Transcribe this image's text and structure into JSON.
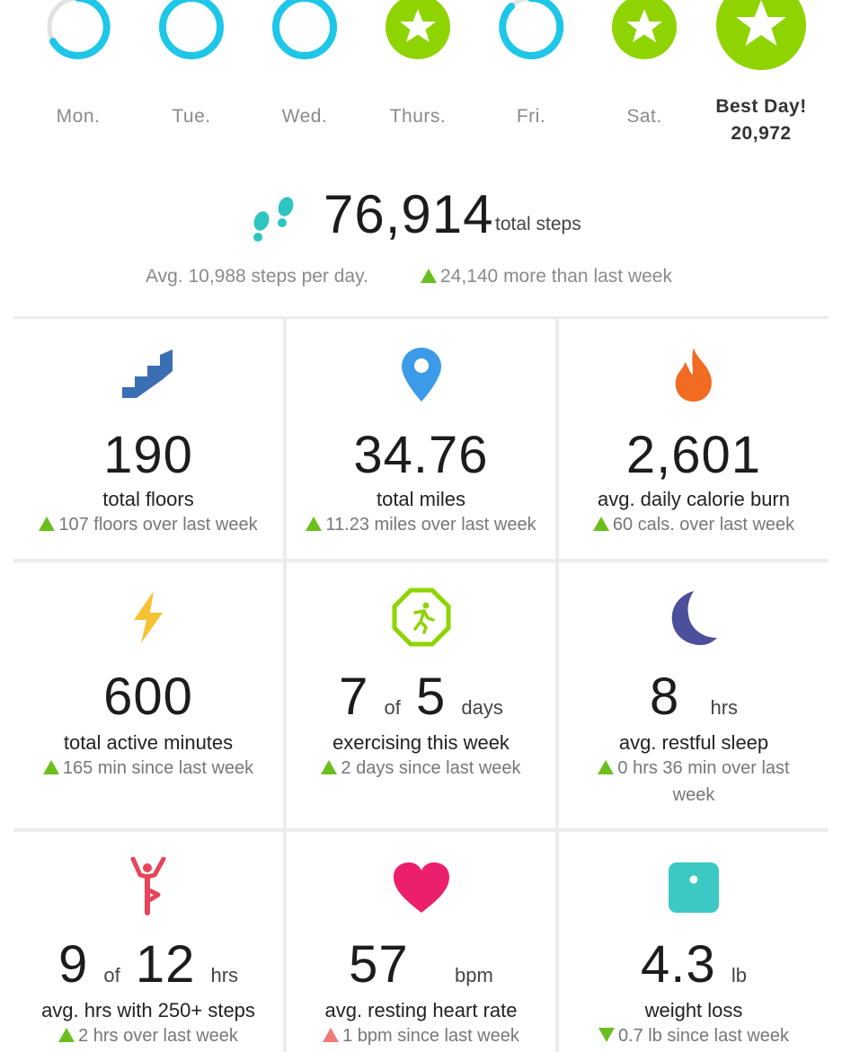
{
  "week": {
    "days": [
      {
        "label": "Mon.",
        "state": "partial",
        "progress": 0.62
      },
      {
        "label": "Tue.",
        "state": "ring",
        "progress": 1.0
      },
      {
        "label": "Wed.",
        "state": "ring",
        "progress": 1.0
      },
      {
        "label": "Thurs.",
        "state": "star",
        "progress": 1.0
      },
      {
        "label": "Fri.",
        "state": "partial",
        "progress": 0.88
      },
      {
        "label": "Sat.",
        "state": "star",
        "progress": 1.0
      }
    ],
    "best_day": {
      "title": "Best Day!",
      "steps": "20,972"
    }
  },
  "summary": {
    "total_steps": "76,914",
    "total_steps_label": "total steps",
    "avg_text": "Avg. 10,988 steps per day.",
    "more_text": "24,140 more than last week"
  },
  "colors": {
    "ring": "#1ec6e8",
    "ring_track": "#e2e2e2",
    "star_green": "#8fd400",
    "up_green": "#6abf1f",
    "up_red": "#f07b7b"
  },
  "tiles": {
    "floors": {
      "icon": "stairs-icon",
      "value": "190",
      "label": "total floors",
      "delta": "107 floors over last week"
    },
    "miles": {
      "icon": "location-pin-icon",
      "value": "34.76",
      "label": "total miles",
      "delta": "11.23 miles over last week"
    },
    "calories": {
      "icon": "flame-icon",
      "value": "2,601",
      "label": "avg. daily calorie burn",
      "delta": "60 cals. over last week"
    },
    "active": {
      "icon": "lightning-icon",
      "value": "600",
      "label": "total active minutes",
      "delta": "165 min since last week"
    },
    "exercise": {
      "icon": "runner-octagon-icon",
      "value": "7",
      "of": "of",
      "value2": "5",
      "unit": "days",
      "label": "exercising this week",
      "delta": "2 days since last week"
    },
    "sleep": {
      "icon": "moon-icon",
      "value": "8",
      "unit": "hrs",
      "label": "avg. restful sleep",
      "delta": "0 hrs 36 min over last week"
    },
    "hourly": {
      "icon": "stretching-person-icon",
      "value": "9",
      "of": "of",
      "value2": "12",
      "unit": "hrs",
      "label": "avg. hrs with 250+ steps",
      "delta": "2 hrs over last week"
    },
    "heart": {
      "icon": "heart-icon",
      "value": "57",
      "unit": "bpm",
      "label": "avg. resting heart rate",
      "delta": "1 bpm since last week"
    },
    "weight": {
      "icon": "scale-icon",
      "value": "4.3",
      "unit": "lb",
      "label": "weight loss",
      "delta": "0.7 lb since last week"
    }
  }
}
